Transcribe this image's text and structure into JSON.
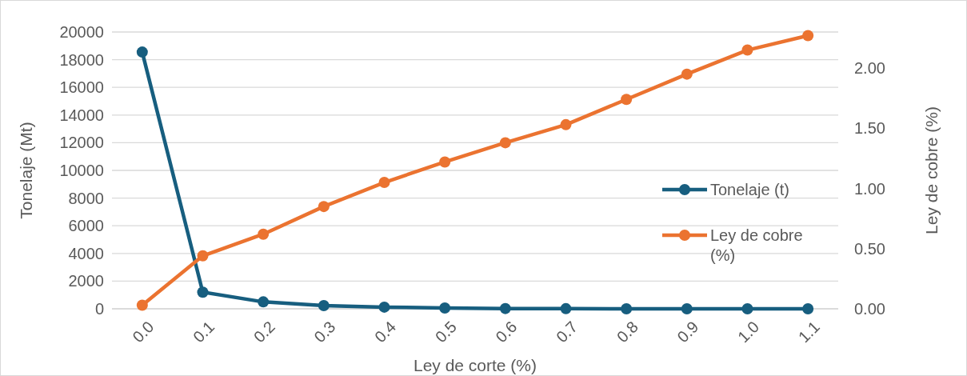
{
  "chart_data": {
    "type": "line",
    "xlabel": "Ley de corte (%)",
    "ylabel": "Tonelaje (Mt)",
    "y2label": "Ley de cobre (%)",
    "categories": [
      "0.0",
      "0.1",
      "0.2",
      "0.3",
      "0.4",
      "0.5",
      "0.6",
      "0.7",
      "0.8",
      "0.9",
      "1.0",
      "1.1"
    ],
    "series": [
      {
        "name": "Tonelaje (t)",
        "color": "#175e7f",
        "values": [
          18550,
          1200,
          500,
          230,
          120,
          60,
          20,
          10,
          0,
          0,
          0,
          0
        ]
      },
      {
        "name": "Ley de cobre (%)",
        "color": "#eb7330",
        "axis": "y2",
        "values": [
          0.03,
          0.44,
          0.62,
          0.85,
          1.05,
          1.22,
          1.38,
          1.53,
          1.74,
          1.95,
          2.15,
          2.27
        ]
      }
    ],
    "ylim": [
      0,
      20000
    ],
    "yticks": [
      0,
      2000,
      4000,
      6000,
      8000,
      10000,
      12000,
      14000,
      16000,
      18000,
      20000
    ],
    "y2lim": [
      0,
      2.3
    ],
    "y2ticks": [
      {
        "value": 0,
        "label": "0.00"
      },
      {
        "value": 0.5,
        "label": "0.50"
      },
      {
        "value": 1,
        "label": "1.00"
      },
      {
        "value": 1.5,
        "label": "1.50"
      },
      {
        "value": 2,
        "label": "2.00"
      }
    ],
    "grid": "y",
    "legend": "right",
    "marker": "circle",
    "line_style": "solid"
  }
}
